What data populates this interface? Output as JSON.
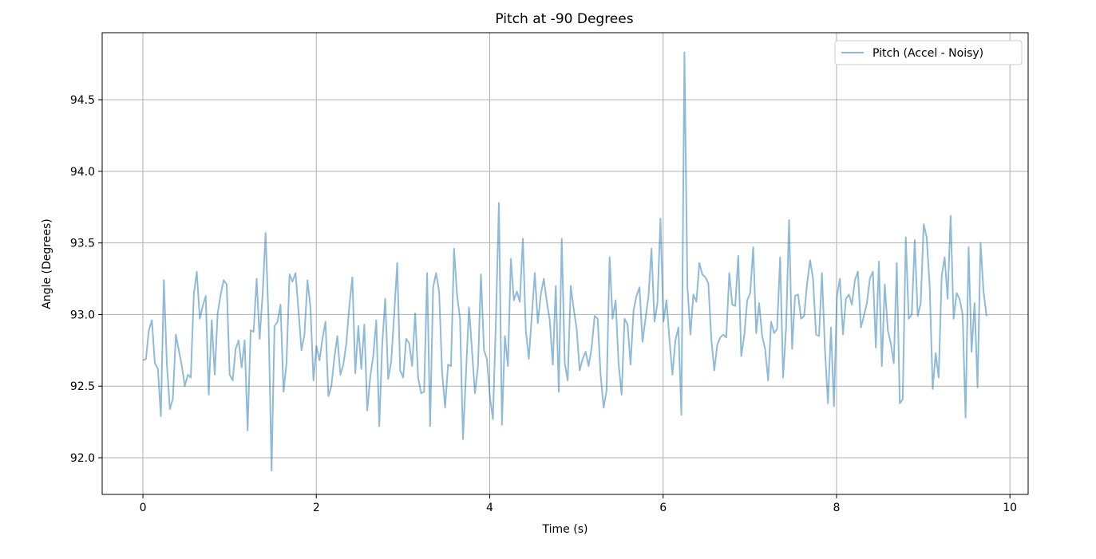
{
  "chart_data": {
    "type": "line",
    "title": "Pitch at -90 Degrees",
    "xlabel": "Time (s)",
    "ylabel": "Angle (Degrees)",
    "xlim": [
      -0.47,
      10.21
    ],
    "ylim": [
      91.744,
      94.968
    ],
    "grid": true,
    "legend_placement": "top-right",
    "x_ticks": [
      0,
      2,
      4,
      6,
      8,
      10
    ],
    "x_tick_labels": [
      "0",
      "2",
      "4",
      "6",
      "8",
      "10"
    ],
    "y_ticks": [
      92.0,
      92.5,
      93.0,
      93.5,
      94.0,
      94.5
    ],
    "y_tick_labels": [
      "92.0",
      "92.5",
      "93.0",
      "93.5",
      "94.0",
      "94.5"
    ],
    "series": [
      {
        "name": "Pitch (Accel - Noisy)",
        "color": "#1f77b4",
        "alpha": 0.5,
        "x_start": 0,
        "x_end": 9.73,
        "values": [
          92.68,
          92.69,
          92.89,
          92.96,
          92.66,
          92.62,
          92.29,
          93.24,
          92.66,
          92.34,
          92.41,
          92.86,
          92.75,
          92.64,
          92.5,
          92.58,
          92.56,
          93.14,
          93.3,
          92.97,
          93.06,
          93.13,
          92.44,
          92.96,
          92.58,
          93.01,
          93.14,
          93.24,
          93.21,
          92.58,
          92.54,
          92.76,
          92.82,
          92.63,
          92.82,
          92.19,
          92.89,
          92.88,
          93.25,
          92.83,
          93.14,
          93.57,
          92.97,
          91.91,
          92.92,
          92.95,
          93.07,
          92.46,
          92.66,
          93.28,
          93.23,
          93.29,
          93.03,
          92.75,
          92.86,
          93.24,
          93.05,
          92.54,
          92.78,
          92.68,
          92.83,
          92.95,
          92.43,
          92.5,
          92.7,
          92.85,
          92.58,
          92.65,
          92.8,
          93.06,
          93.26,
          92.59,
          92.92,
          92.62,
          92.93,
          92.33,
          92.57,
          92.71,
          92.96,
          92.22,
          92.8,
          93.11,
          92.55,
          92.67,
          93.0,
          93.36,
          92.61,
          92.56,
          92.83,
          92.8,
          92.64,
          93.01,
          92.56,
          92.45,
          92.46,
          93.29,
          92.22,
          93.19,
          93.29,
          93.16,
          92.6,
          92.35,
          92.65,
          92.64,
          93.46,
          93.14,
          92.97,
          92.13,
          92.59,
          93.05,
          92.75,
          92.45,
          92.64,
          93.28,
          92.75,
          92.69,
          92.42,
          92.27,
          92.97,
          93.78,
          92.23,
          92.85,
          92.64,
          93.39,
          93.1,
          93.16,
          93.09,
          93.53,
          92.89,
          92.69,
          92.99,
          93.29,
          92.94,
          93.14,
          93.25,
          93.09,
          92.96,
          92.65,
          93.2,
          92.46,
          93.53,
          92.66,
          92.54,
          93.2,
          93.04,
          92.9,
          92.61,
          92.69,
          92.74,
          92.64,
          92.77,
          92.99,
          92.97,
          92.58,
          92.35,
          92.47,
          93.4,
          92.97,
          93.1,
          92.66,
          92.44,
          92.97,
          92.93,
          92.65,
          93.03,
          93.13,
          93.19,
          92.81,
          92.97,
          93.13,
          93.46,
          92.95,
          93.08,
          93.67,
          92.95,
          93.1,
          92.83,
          92.58,
          92.82,
          92.91,
          92.3,
          94.83,
          93.2,
          92.86,
          93.14,
          93.09,
          93.36,
          93.28,
          93.26,
          93.22,
          92.83,
          92.61,
          92.79,
          92.84,
          92.86,
          92.84,
          93.29,
          93.07,
          93.06,
          93.41,
          92.71,
          92.85,
          93.1,
          93.15,
          93.47,
          92.87,
          93.08,
          92.85,
          92.76,
          92.54,
          92.95,
          92.87,
          92.9,
          93.4,
          92.56,
          92.91,
          93.66,
          92.76,
          93.13,
          93.14,
          92.97,
          92.99,
          93.21,
          93.38,
          93.25,
          92.86,
          92.85,
          93.29,
          92.75,
          92.38,
          92.91,
          92.36,
          93.13,
          93.25,
          92.86,
          93.11,
          93.14,
          93.07,
          93.24,
          93.3,
          92.91,
          92.99,
          93.08,
          93.25,
          93.3,
          92.77,
          93.37,
          92.64,
          93.21,
          92.89,
          92.8,
          92.66,
          93.36,
          92.38,
          92.41,
          93.54,
          92.97,
          93.0,
          93.52,
          92.99,
          93.08,
          93.63,
          93.54,
          93.19,
          92.48,
          92.73,
          92.56,
          93.27,
          93.4,
          93.11,
          93.69,
          92.97,
          93.15,
          93.11,
          93.0,
          92.28,
          93.47,
          92.74,
          93.08,
          92.49,
          93.5,
          93.16,
          92.99
        ]
      }
    ]
  }
}
